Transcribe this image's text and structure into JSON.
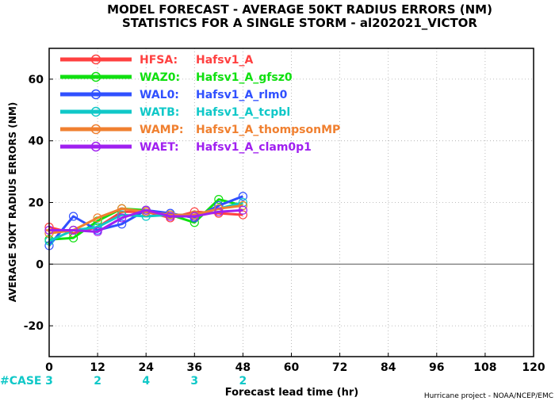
{
  "chart_data": {
    "type": "line",
    "title": "MODEL FORECAST - AVERAGE 50KT RADIUS ERRORS (NM)",
    "subtitle": "STATISTICS FOR A SINGLE STORM - al202021_VICTOR",
    "xlabel": "Forecast lead time (hr)",
    "ylabel": "AVERAGE 50KT RADIUS ERRORS (NM)",
    "xlim": [
      0,
      120
    ],
    "ylim": [
      -30,
      70
    ],
    "xticks": [
      0,
      12,
      24,
      36,
      48,
      60,
      72,
      84,
      96,
      108,
      120
    ],
    "yticks": [
      -20,
      0,
      20,
      40,
      60
    ],
    "grid": true,
    "legend_position": "top-left",
    "x": [
      0,
      6,
      12,
      18,
      24,
      30,
      36,
      42,
      48
    ],
    "series": [
      {
        "code": "HFSA:",
        "name": "Hafsv1_A",
        "color": "#ff4040",
        "values": [
          12,
          10,
          12,
          17,
          17,
          15,
          17,
          16.5,
          16
        ]
      },
      {
        "code": "WAZ0:",
        "name": "Hafsv1_A_gfsz0",
        "color": "#10e010",
        "values": [
          8,
          8.5,
          14,
          18,
          17.5,
          16,
          13.5,
          21,
          19
        ]
      },
      {
        "code": "WAL0:",
        "name": "Hafsv1_A_rlm0",
        "color": "#3050ff",
        "values": [
          6,
          15.5,
          11,
          13,
          17.5,
          16.5,
          15,
          19,
          22
        ]
      },
      {
        "code": "WATB:",
        "name": "Hafsv1_A_tcpbl",
        "color": "#10c8c8",
        "values": [
          7.5,
          11,
          12,
          16,
          15.5,
          16,
          16,
          18,
          20
        ]
      },
      {
        "code": "WAMP:",
        "name": "Hafsv1_A_thompsonMP",
        "color": "#f08030",
        "values": [
          10,
          11,
          15,
          18,
          17,
          16,
          16,
          18,
          19
        ]
      },
      {
        "code": "WAET:",
        "name": "Hafsv1_A_clam0p1",
        "color": "#a020f0",
        "values": [
          11,
          11,
          10.5,
          15,
          17.5,
          15.5,
          15.5,
          17,
          17.5
        ]
      }
    ],
    "cases_label": "#CASE",
    "cases": [
      {
        "x": 0,
        "n": "3"
      },
      {
        "x": 12,
        "n": "2"
      },
      {
        "x": 24,
        "n": "4"
      },
      {
        "x": 36,
        "n": "3"
      },
      {
        "x": 48,
        "n": "2"
      }
    ],
    "credit": "Hurricane project - NOAA/NCEP/EMC"
  }
}
